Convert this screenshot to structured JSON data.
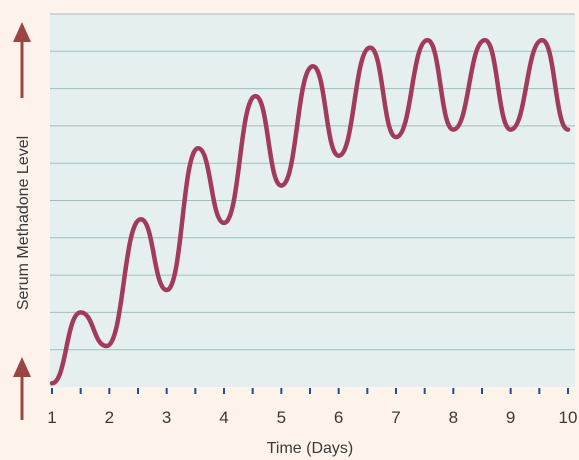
{
  "chart_data": {
    "type": "line",
    "title": "",
    "xlabel": "Time (Days)",
    "ylabel": "Serum Methadone Level",
    "x_ticks": [
      "1",
      "2",
      "3",
      "4",
      "5",
      "6",
      "7",
      "8",
      "9",
      "10"
    ],
    "xlim": [
      1,
      10
    ],
    "ylim": [
      0,
      10
    ],
    "grid": true,
    "colors": {
      "background": "#fdf3ea",
      "plot_area": "#e5efef",
      "gridline": "#9fbfbf",
      "line": "#a23a5c",
      "arrow": "#9a4444",
      "tick_mark": "#1f4f8f"
    },
    "series": [
      {
        "name": "",
        "x": [
          1.0,
          1.5,
          1.95,
          2.55,
          3.0,
          3.55,
          4.0,
          4.55,
          5.0,
          5.55,
          6.0,
          6.55,
          7.0,
          7.55,
          8.0,
          8.55,
          9.0,
          9.55,
          10.0
        ],
        "y": [
          0.1,
          2.0,
          1.1,
          4.5,
          2.6,
          6.4,
          4.4,
          7.8,
          5.4,
          8.6,
          6.2,
          9.1,
          6.7,
          9.3,
          6.9,
          9.3,
          6.9,
          9.3,
          6.9
        ]
      }
    ]
  }
}
